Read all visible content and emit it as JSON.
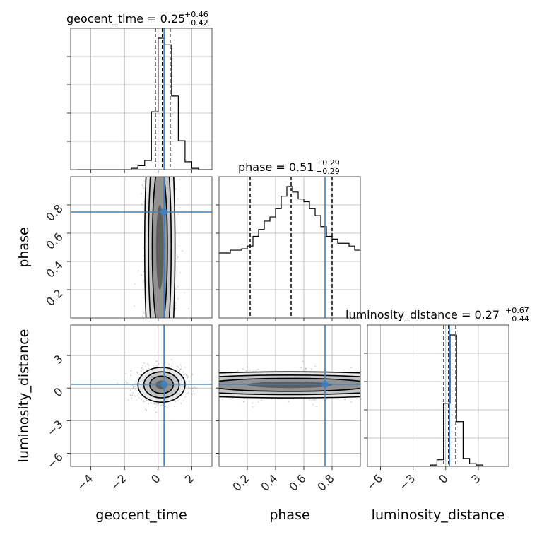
{
  "chart_data": {
    "type": "corner",
    "parameters": [
      "geocent_time",
      "phase",
      "luminosity_distance"
    ],
    "truths": {
      "geocent_time": 0.35,
      "phase": 0.75,
      "luminosity_distance": 0.35
    },
    "truth_color": "#3f7fbd",
    "titles": [
      {
        "param": "geocent_time",
        "text": "geocent_time = 0.25",
        "plus": "+0.46",
        "minus": "−0.42"
      },
      {
        "param": "phase",
        "text": "phase = 0.51",
        "plus": "+0.29",
        "minus": "−0.29"
      },
      {
        "param": "luminosity_distance",
        "text": "luminosity_distance = 0.27",
        "plus": "+0.67",
        "minus": "−0.44"
      }
    ],
    "xlabels": [
      "geocent_time",
      "phase",
      "luminosity_distance"
    ],
    "ylabels": [
      "phase",
      "luminosity_distance"
    ],
    "ranges": {
      "geocent_time": [
        -5.2,
        3.2
      ],
      "phase": [
        0.0,
        1.0
      ],
      "luminosity_distance": [
        -7.2,
        5.8
      ]
    },
    "ticks": {
      "geocent_time": [
        "−4",
        "−2",
        "0",
        "2"
      ],
      "geocent_time_values": [
        -4,
        -2,
        0,
        2
      ],
      "phase": [
        "0.2",
        "0.4",
        "0.6",
        "0.8"
      ],
      "phase_values": [
        0.2,
        0.4,
        0.6,
        0.8
      ],
      "luminosity_distance": [
        "−6",
        "−3",
        "0",
        "3"
      ],
      "luminosity_distance_values": [
        -6,
        -3,
        0,
        3
      ]
    },
    "quantiles": {
      "geocent_time": [
        -0.17,
        0.25,
        0.71
      ],
      "phase": [
        0.22,
        0.51,
        0.8
      ],
      "luminosity_distance": [
        -0.17,
        0.27,
        0.94
      ]
    },
    "histograms": {
      "geocent_time": {
        "edges": [
          -4.8,
          -4.4,
          -4.0,
          -3.6,
          -3.2,
          -2.8,
          -2.4,
          -2.0,
          -1.6,
          -1.2,
          -0.8,
          -0.4,
          0.0,
          0.4,
          0.8,
          1.2,
          1.6,
          2.0,
          2.4,
          2.8,
          3.2
        ],
        "counts": [
          0,
          0,
          0,
          0,
          0,
          0,
          0,
          0,
          1,
          3,
          7,
          44,
          100,
          95,
          56,
          22,
          6,
          1,
          0,
          0
        ]
      },
      "phase": {
        "edges": [
          0.0,
          0.04,
          0.08,
          0.12,
          0.16,
          0.2,
          0.24,
          0.28,
          0.32,
          0.36,
          0.4,
          0.44,
          0.48,
          0.52,
          0.56,
          0.6,
          0.64,
          0.68,
          0.72,
          0.76,
          0.8,
          0.84,
          0.88,
          0.92,
          0.96,
          1.0
        ],
        "counts": [
          47,
          47,
          49,
          49,
          50,
          52,
          59,
          64,
          70,
          73,
          79,
          88,
          95,
          91,
          86,
          84,
          79,
          74,
          66,
          59,
          57,
          54,
          54,
          52,
          49
        ]
      },
      "luminosity_distance": {
        "edges": [
          -6.2,
          -5.6,
          -5.0,
          -4.4,
          -3.8,
          -3.2,
          -2.6,
          -2.0,
          -1.4,
          -0.8,
          -0.2,
          0.4,
          1.0,
          1.6,
          2.2,
          2.8,
          3.4,
          4.0,
          4.6,
          5.2,
          5.8
        ],
        "counts": [
          0,
          0,
          0,
          0,
          0,
          0,
          0,
          0,
          1,
          5,
          48,
          100,
          34,
          6,
          2,
          1,
          0,
          0,
          0,
          0
        ]
      }
    },
    "joint": {
      "phase_vs_geocent_time": {
        "mean_x": 0.1,
        "sd_x": 0.45,
        "sd_y": 0.32,
        "note_none": ""
      },
      "luminosity_distance_vs_geocent_time": {
        "mean_x": 0.2,
        "mean_y": 0.3,
        "sd_x": 0.7,
        "sd_y": 0.8
      },
      "luminosity_distance_vs_phase": {
        "mean_y": 0.3,
        "sd_y": 0.6
      }
    },
    "grid": true
  }
}
